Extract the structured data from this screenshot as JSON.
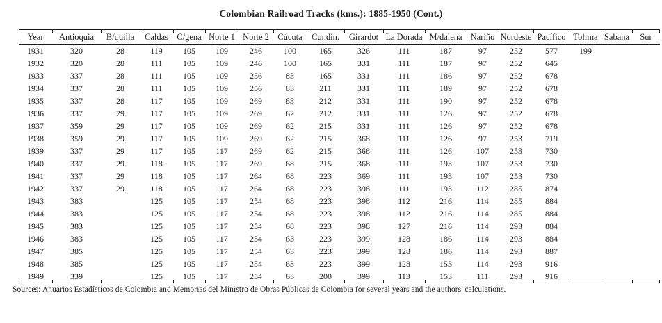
{
  "title": "Colombian Railroad Tracks (kms.): 1885-1950 (Cont.)",
  "source_note": "Sources: Anuarios Estadísticos de Colombia and Memorias del Ministro de Obras Públicas de Colombia for several years and the authors' calculations.",
  "colors": {
    "background": "#ffffff",
    "text": "#1f1f1f",
    "rule": "#1a1a1a"
  },
  "chart_data": {
    "type": "table",
    "title": "Colombian Railroad Tracks (kms.): 1885-1950 (Cont.)",
    "columns": [
      "Year",
      "Antioquia",
      "B/quilla",
      "Caldas",
      "C/gena",
      "Norte 1",
      "Norte 2",
      "Cúcuta",
      "Cundin.",
      "Girardot",
      "La Dorada",
      "M/dalena",
      "Nariño",
      "Nordeste",
      "Pacífico",
      "Tolima",
      "Sabana",
      "Sur"
    ],
    "rows": [
      [
        "1931",
        "320",
        "28",
        "119",
        "105",
        "109",
        "246",
        "100",
        "165",
        "326",
        "111",
        "187",
        "97",
        "252",
        "577",
        "199",
        "",
        ""
      ],
      [
        "1932",
        "320",
        "28",
        "111",
        "105",
        "109",
        "246",
        "100",
        "165",
        "331",
        "111",
        "187",
        "97",
        "252",
        "645",
        "",
        "",
        ""
      ],
      [
        "1933",
        "337",
        "28",
        "111",
        "105",
        "109",
        "256",
        "83",
        "165",
        "331",
        "111",
        "186",
        "97",
        "252",
        "678",
        "",
        "",
        ""
      ],
      [
        "1934",
        "337",
        "28",
        "111",
        "105",
        "109",
        "256",
        "83",
        "211",
        "331",
        "111",
        "189",
        "97",
        "252",
        "678",
        "",
        "",
        ""
      ],
      [
        "1935",
        "337",
        "28",
        "117",
        "105",
        "109",
        "269",
        "83",
        "212",
        "331",
        "111",
        "190",
        "97",
        "252",
        "678",
        "",
        "",
        ""
      ],
      [
        "1936",
        "337",
        "29",
        "117",
        "105",
        "109",
        "269",
        "62",
        "212",
        "331",
        "111",
        "126",
        "97",
        "252",
        "678",
        "",
        "",
        ""
      ],
      [
        "1937",
        "359",
        "29",
        "117",
        "105",
        "109",
        "269",
        "62",
        "215",
        "331",
        "111",
        "126",
        "97",
        "252",
        "678",
        "",
        "",
        ""
      ],
      [
        "1938",
        "359",
        "29",
        "117",
        "105",
        "109",
        "269",
        "62",
        "215",
        "368",
        "111",
        "126",
        "97",
        "253",
        "719",
        "",
        "",
        ""
      ],
      [
        "1939",
        "337",
        "29",
        "117",
        "105",
        "117",
        "269",
        "62",
        "215",
        "368",
        "111",
        "126",
        "107",
        "253",
        "730",
        "",
        "",
        ""
      ],
      [
        "1940",
        "337",
        "29",
        "118",
        "105",
        "117",
        "269",
        "68",
        "215",
        "368",
        "111",
        "193",
        "107",
        "253",
        "730",
        "",
        "",
        ""
      ],
      [
        "1941",
        "337",
        "29",
        "118",
        "105",
        "117",
        "264",
        "68",
        "223",
        "369",
        "111",
        "193",
        "107",
        "253",
        "730",
        "",
        "",
        ""
      ],
      [
        "1942",
        "337",
        "29",
        "118",
        "105",
        "117",
        "264",
        "68",
        "223",
        "398",
        "111",
        "193",
        "112",
        "285",
        "874",
        "",
        "",
        ""
      ],
      [
        "1943",
        "383",
        "",
        "125",
        "105",
        "117",
        "254",
        "68",
        "223",
        "398",
        "112",
        "216",
        "114",
        "285",
        "884",
        "",
        "",
        ""
      ],
      [
        "1944",
        "383",
        "",
        "125",
        "105",
        "117",
        "254",
        "68",
        "223",
        "398",
        "112",
        "216",
        "114",
        "285",
        "884",
        "",
        "",
        ""
      ],
      [
        "1945",
        "383",
        "",
        "125",
        "105",
        "117",
        "254",
        "68",
        "223",
        "398",
        "127",
        "216",
        "114",
        "293",
        "884",
        "",
        "",
        ""
      ],
      [
        "1946",
        "383",
        "",
        "125",
        "105",
        "117",
        "254",
        "63",
        "223",
        "399",
        "128",
        "186",
        "114",
        "293",
        "884",
        "",
        "",
        ""
      ],
      [
        "1947",
        "385",
        "",
        "125",
        "105",
        "117",
        "254",
        "63",
        "223",
        "399",
        "128",
        "186",
        "114",
        "293",
        "887",
        "",
        "",
        ""
      ],
      [
        "1948",
        "385",
        "",
        "125",
        "105",
        "117",
        "254",
        "63",
        "223",
        "399",
        "128",
        "153",
        "114",
        "293",
        "916",
        "",
        "",
        ""
      ],
      [
        "1949",
        "339",
        "",
        "125",
        "105",
        "117",
        "254",
        "63",
        "200",
        "399",
        "113",
        "153",
        "111",
        "293",
        "916",
        "",
        "",
        ""
      ]
    ]
  }
}
